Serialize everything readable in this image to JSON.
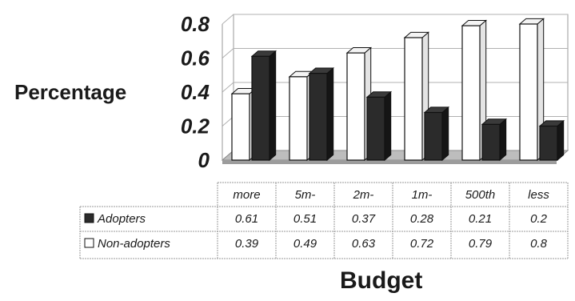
{
  "chart_data": {
    "type": "bar",
    "categories": [
      "more",
      "5m-",
      "2m-",
      "1m-",
      "500th",
      "less"
    ],
    "series": [
      {
        "name": "Adopters",
        "values": [
          0.61,
          0.51,
          0.37,
          0.28,
          0.21,
          0.2
        ],
        "color": "#2b2b2b"
      },
      {
        "name": "Non-adopters",
        "values": [
          0.39,
          0.49,
          0.63,
          0.72,
          0.79,
          0.8
        ],
        "color": "#ffffff"
      }
    ],
    "xlabel": "Budget",
    "ylabel": "Percentage",
    "ylim": [
      0,
      0.8
    ],
    "yticks": [
      "0",
      "0.2",
      "0.4",
      "0.6",
      "0.8"
    ],
    "grid": true,
    "data_table": {
      "rows": [
        {
          "label": "Adopters",
          "values": [
            "0.61",
            "0.51",
            "0.37",
            "0.28",
            "0.21",
            "0.2"
          ]
        },
        {
          "label": "Non-adopters",
          "values": [
            "0.39",
            "0.49",
            "0.63",
            "0.72",
            "0.79",
            "0.8"
          ]
        }
      ]
    }
  }
}
